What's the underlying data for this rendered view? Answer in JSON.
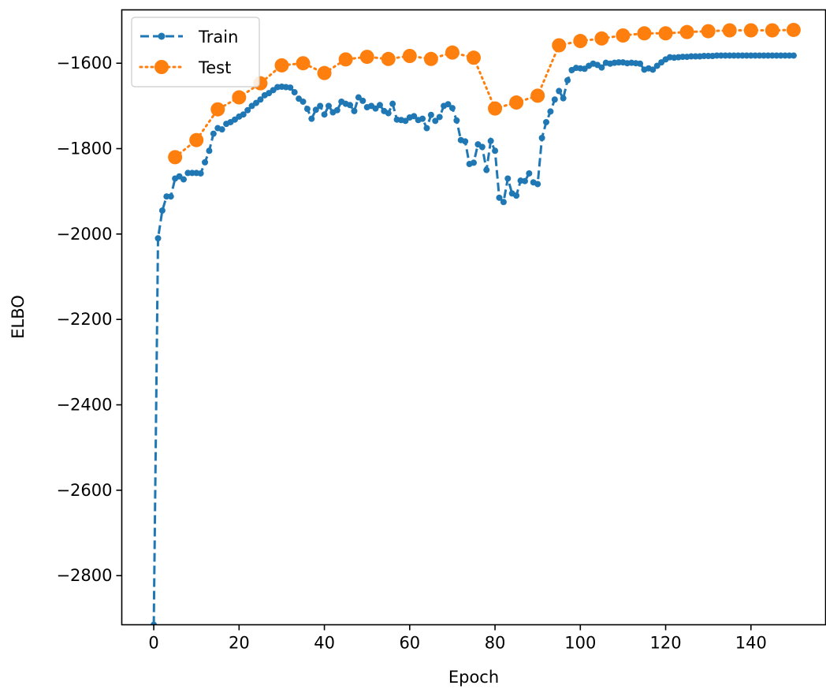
{
  "chart_data": {
    "type": "line",
    "title": "",
    "xlabel": "Epoch",
    "ylabel": "ELBO",
    "xlim": [
      -7.5,
      157.5
    ],
    "ylim": [
      -2915,
      -1475
    ],
    "x_ticks": [
      0,
      20,
      40,
      60,
      80,
      100,
      120,
      140
    ],
    "x_tick_labels": [
      "0",
      "20",
      "40",
      "60",
      "80",
      "100",
      "120",
      "140"
    ],
    "y_ticks": [
      -2800,
      -2600,
      -2400,
      -2200,
      -2000,
      -1800,
      -1600
    ],
    "y_tick_labels": [
      "−2800",
      "−2600",
      "−2400",
      "−2200",
      "−2000",
      "−1800",
      "−1600"
    ],
    "grid": false,
    "legend_position": "top-left",
    "colors": {
      "train": "#1f77b4",
      "test": "#ff7f0e",
      "axes": "#000000"
    },
    "series": [
      {
        "name": "Train",
        "style": "dashed",
        "marker": "small-circle",
        "color": "#1f77b4",
        "x": [
          0,
          1,
          2,
          3,
          4,
          5,
          6,
          7,
          8,
          9,
          10,
          11,
          12,
          13,
          14,
          15,
          16,
          17,
          18,
          19,
          20,
          21,
          22,
          23,
          24,
          25,
          26,
          27,
          28,
          29,
          30,
          31,
          32,
          33,
          34,
          35,
          36,
          37,
          38,
          39,
          40,
          41,
          42,
          43,
          44,
          45,
          46,
          47,
          48,
          49,
          50,
          51,
          52,
          53,
          54,
          55,
          56,
          57,
          58,
          59,
          60,
          61,
          62,
          63,
          64,
          65,
          66,
          67,
          68,
          69,
          70,
          71,
          72,
          73,
          74,
          75,
          76,
          77,
          78,
          79,
          80,
          81,
          82,
          83,
          84,
          85,
          86,
          87,
          88,
          89,
          90,
          91,
          92,
          93,
          94,
          95,
          96,
          97,
          98,
          99,
          100,
          101,
          102,
          103,
          104,
          105,
          106,
          107,
          108,
          109,
          110,
          111,
          112,
          113,
          114,
          115,
          116,
          117,
          118,
          119,
          120,
          121,
          122,
          123,
          124,
          125,
          126,
          127,
          128,
          129,
          130,
          131,
          132,
          133,
          134,
          135,
          136,
          137,
          138,
          139,
          140,
          141,
          142,
          143,
          144,
          145,
          146,
          147,
          148,
          149,
          150
        ],
        "y": [
          -2915,
          -2010,
          -1945,
          -1912,
          -1912,
          -1870,
          -1865,
          -1872,
          -1857,
          -1857,
          -1857,
          -1858,
          -1832,
          -1805,
          -1765,
          -1752,
          -1755,
          -1742,
          -1738,
          -1732,
          -1725,
          -1720,
          -1710,
          -1700,
          -1693,
          -1685,
          -1675,
          -1670,
          -1663,
          -1656,
          -1655,
          -1656,
          -1657,
          -1668,
          -1683,
          -1690,
          -1707,
          -1730,
          -1709,
          -1700,
          -1720,
          -1700,
          -1715,
          -1710,
          -1690,
          -1695,
          -1698,
          -1712,
          -1680,
          -1688,
          -1703,
          -1700,
          -1706,
          -1698,
          -1712,
          -1717,
          -1695,
          -1732,
          -1733,
          -1735,
          -1727,
          -1724,
          -1733,
          -1730,
          -1752,
          -1721,
          -1735,
          -1726,
          -1700,
          -1696,
          -1705,
          -1734,
          -1780,
          -1783,
          -1836,
          -1833,
          -1790,
          -1796,
          -1850,
          -1782,
          -1805,
          -1915,
          -1925,
          -1870,
          -1905,
          -1910,
          -1875,
          -1876,
          -1858,
          -1879,
          -1883,
          -1775,
          -1738,
          -1713,
          -1685,
          -1665,
          -1682,
          -1640,
          -1616,
          -1611,
          -1612,
          -1613,
          -1606,
          -1601,
          -1604,
          -1610,
          -1599,
          -1601,
          -1599,
          -1598,
          -1598,
          -1600,
          -1599,
          -1600,
          -1601,
          -1615,
          -1612,
          -1615,
          -1606,
          -1598,
          -1591,
          -1586,
          -1587,
          -1586,
          -1585,
          -1585,
          -1584,
          -1584,
          -1584,
          -1583,
          -1583,
          -1583,
          -1582,
          -1582,
          -1582,
          -1582,
          -1582,
          -1582,
          -1582,
          -1582,
          -1582,
          -1582,
          -1582,
          -1582,
          -1582,
          -1582,
          -1582,
          -1582,
          -1582,
          -1582,
          -1582
        ]
      },
      {
        "name": "Test",
        "style": "dotted",
        "marker": "large-circle",
        "color": "#ff7f0e",
        "x": [
          5,
          10,
          15,
          20,
          25,
          30,
          35,
          40,
          45,
          50,
          55,
          60,
          65,
          70,
          75,
          80,
          85,
          90,
          95,
          100,
          105,
          110,
          115,
          120,
          125,
          130,
          135,
          140,
          145,
          150
        ],
        "y": [
          -1820,
          -1780,
          -1708,
          -1680,
          -1647,
          -1605,
          -1600,
          -1623,
          -1591,
          -1585,
          -1590,
          -1583,
          -1590,
          -1575,
          -1587,
          -1706,
          -1692,
          -1676,
          -1558,
          -1548,
          -1542,
          -1535,
          -1530,
          -1530,
          -1527,
          -1525,
          -1523,
          -1523,
          -1523,
          -1522
        ]
      }
    ]
  }
}
